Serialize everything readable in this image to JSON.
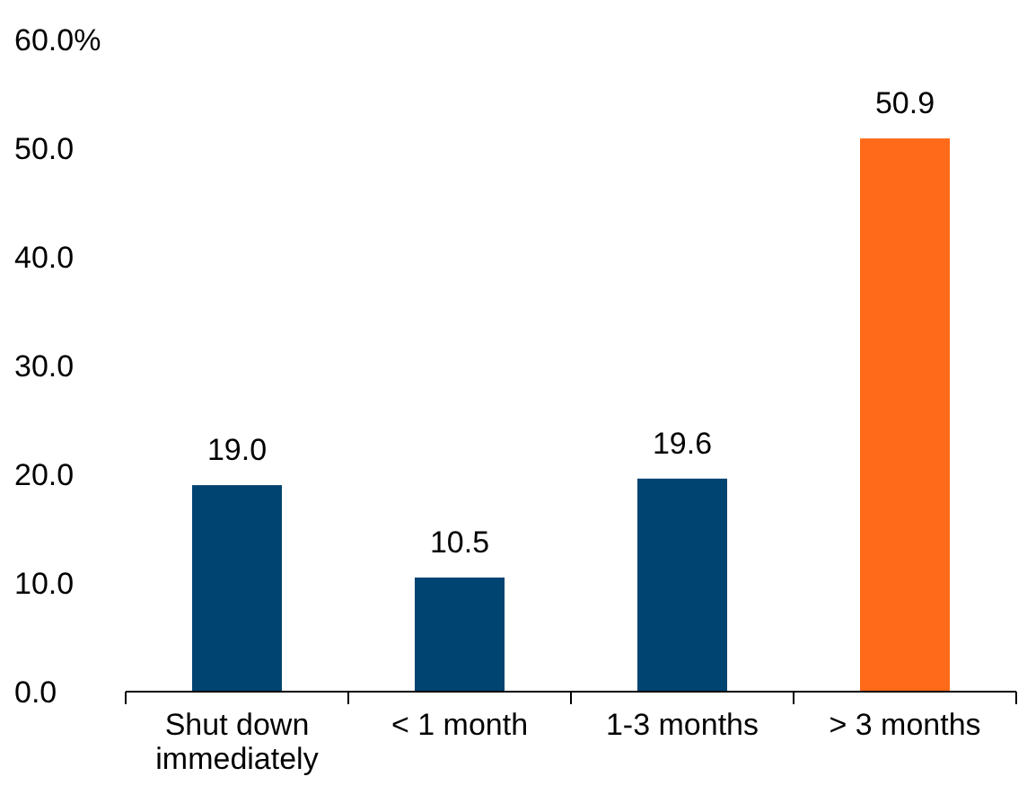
{
  "chart_data": {
    "type": "bar",
    "categories": [
      "Shut down immediately",
      "< 1 month",
      "1-3 months",
      "> 3 months"
    ],
    "values": [
      19.0,
      10.5,
      19.6,
      50.9
    ],
    "colors": [
      "#004472",
      "#004472",
      "#004472",
      "#ff6a1a"
    ],
    "value_labels": [
      "19.0",
      "10.5",
      "19.6",
      "50.9"
    ],
    "ylim": [
      0,
      60
    ],
    "yticks": [
      {
        "value": 0,
        "label": "0.0"
      },
      {
        "value": 10,
        "label": "10.0"
      },
      {
        "value": 20,
        "label": "20.0"
      },
      {
        "value": 30,
        "label": "30.0"
      },
      {
        "value": 40,
        "label": "40.0"
      },
      {
        "value": 50,
        "label": "50.0"
      },
      {
        "value": 60,
        "label": "60.0%"
      }
    ],
    "tick_labels": true
  }
}
